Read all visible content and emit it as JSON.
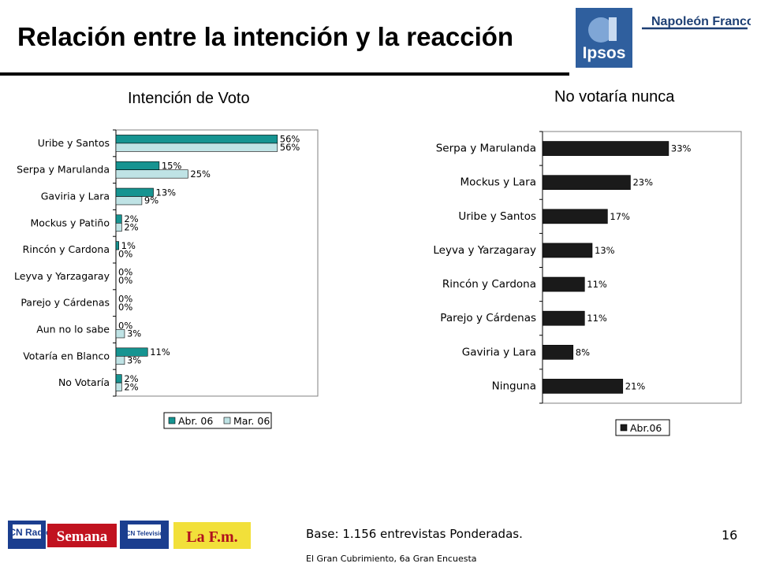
{
  "header": {
    "title": "Relación entre la intención y la reacción",
    "logo_brand": "Napoleón Franco",
    "logo_ipsos": "Ipsos"
  },
  "footer": {
    "base": "Base: 1.156 entrevistas Ponderadas.",
    "source": "El Gran Cubrimiento, 6a Gran Encuesta",
    "page_number": "16",
    "media_logos": [
      "RCN Radio",
      "Semana",
      "RCN Televisión",
      "La F.m."
    ]
  },
  "colors": {
    "teal": "#169491",
    "light_teal": "#bfe3e5",
    "dark_bar": "#1a1a1a"
  },
  "chart_data": [
    {
      "type": "bar",
      "orientation": "horizontal",
      "title": "Intención de Voto",
      "categories": [
        "Uribe y Santos",
        "Serpa y Marulanda",
        "Gaviria y Lara",
        "Mockus y Patiño",
        "Rincón y Cardona",
        "Leyva y Yarzagaray",
        "Parejo y Cárdenas",
        "Aun no lo sabe",
        "Votaría en Blanco",
        "No Votaría"
      ],
      "series": [
        {
          "name": "Abr. 06",
          "values": [
            56,
            15,
            13,
            2,
            1,
            0,
            0,
            0,
            11,
            2
          ],
          "color": "#169491"
        },
        {
          "name": "Mar. 06",
          "values": [
            56,
            25,
            9,
            2,
            0,
            0,
            0,
            3,
            3,
            2
          ],
          "color": "#bfe3e5"
        }
      ],
      "value_suffix": "%",
      "xlim": [
        0,
        70
      ],
      "grid": false,
      "legend_position": "bottom"
    },
    {
      "type": "bar",
      "orientation": "horizontal",
      "title": "No votaría nunca",
      "categories": [
        "Serpa y Marulanda",
        "Mockus y Lara",
        "Uribe y Santos",
        "Leyva y Yarzagaray",
        "Rincón y Cardona",
        "Parejo y Cárdenas",
        "Gaviria y Lara",
        "Ninguna"
      ],
      "series": [
        {
          "name": "Abr.06",
          "values": [
            33,
            23,
            17,
            13,
            11,
            11,
            8,
            21
          ],
          "color": "#1a1a1a"
        }
      ],
      "value_suffix": "%",
      "xlim": [
        0,
        52
      ],
      "grid": false,
      "legend_position": "bottom"
    }
  ]
}
